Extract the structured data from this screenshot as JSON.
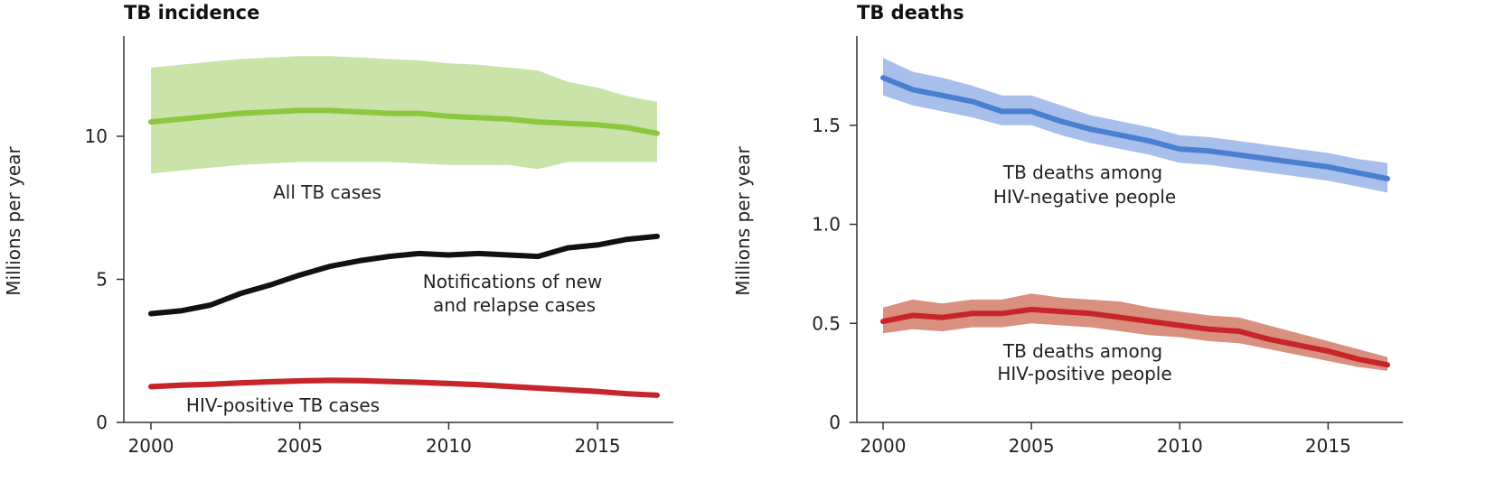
{
  "chart_data": [
    {
      "type": "line",
      "title": "TB incidence",
      "ylabel": "Millions per year",
      "xlabel": "",
      "xlim": [
        2000,
        2017
      ],
      "ylim": [
        0,
        13.5
      ],
      "xticks": [
        "2000",
        "2005",
        "2010",
        "2015"
      ],
      "yticks": [
        "0",
        "5",
        "10"
      ],
      "x": [
        2000,
        2001,
        2002,
        2003,
        2004,
        2005,
        2006,
        2007,
        2008,
        2009,
        2010,
        2011,
        2012,
        2013,
        2014,
        2015,
        2016,
        2017
      ],
      "series": [
        {
          "name": "All TB cases",
          "color": "#8dc63f",
          "band_color": "#c9e3a8",
          "values": [
            10.5,
            10.6,
            10.7,
            10.8,
            10.85,
            10.9,
            10.9,
            10.85,
            10.8,
            10.8,
            10.7,
            10.65,
            10.6,
            10.5,
            10.45,
            10.4,
            10.3,
            10.1
          ],
          "lower": [
            8.7,
            8.8,
            8.9,
            9.0,
            9.05,
            9.1,
            9.1,
            9.1,
            9.1,
            9.05,
            9.0,
            9.0,
            9.0,
            8.85,
            9.1,
            9.1,
            9.1,
            9.1
          ],
          "upper": [
            12.4,
            12.5,
            12.6,
            12.7,
            12.75,
            12.8,
            12.8,
            12.75,
            12.7,
            12.65,
            12.55,
            12.5,
            12.4,
            12.3,
            11.9,
            11.7,
            11.4,
            11.2
          ]
        },
        {
          "name": "Notifications of new and relapse cases",
          "color": "#111111",
          "values": [
            3.8,
            3.9,
            4.1,
            4.5,
            4.8,
            5.15,
            5.45,
            5.65,
            5.8,
            5.9,
            5.85,
            5.9,
            5.85,
            5.8,
            6.1,
            6.2,
            6.4,
            6.5
          ]
        },
        {
          "name": "HIV-positive TB cases",
          "color": "#c8242b",
          "band_color": "#e8a096",
          "values": [
            1.25,
            1.3,
            1.33,
            1.38,
            1.42,
            1.45,
            1.47,
            1.46,
            1.43,
            1.4,
            1.36,
            1.32,
            1.26,
            1.2,
            1.14,
            1.08,
            1.0,
            0.95
          ],
          "lower": [
            1.15,
            1.2,
            1.23,
            1.28,
            1.32,
            1.35,
            1.37,
            1.36,
            1.33,
            1.3,
            1.26,
            1.22,
            1.16,
            1.1,
            1.04,
            0.98,
            0.91,
            0.86
          ],
          "upper": [
            1.35,
            1.4,
            1.43,
            1.48,
            1.52,
            1.55,
            1.57,
            1.56,
            1.53,
            1.5,
            1.46,
            1.42,
            1.36,
            1.3,
            1.24,
            1.18,
            1.09,
            1.04
          ]
        }
      ],
      "annotations": [
        "All TB cases",
        "Notifications of new",
        "and relapse cases",
        "HIV-positive TB cases"
      ]
    },
    {
      "type": "line",
      "title": "TB deaths",
      "ylabel": "Millions per year",
      "xlabel": "",
      "xlim": [
        2000,
        2017
      ],
      "ylim": [
        0,
        1.95
      ],
      "xticks": [
        "2000",
        "2005",
        "2010",
        "2015"
      ],
      "yticks": [
        "0",
        "0.5",
        "1.0",
        "1.5"
      ],
      "x": [
        2000,
        2001,
        2002,
        2003,
        2004,
        2005,
        2006,
        2007,
        2008,
        2009,
        2010,
        2011,
        2012,
        2013,
        2014,
        2015,
        2016,
        2017
      ],
      "series": [
        {
          "name": "TB deaths among HIV-negative people",
          "color": "#4a7fd0",
          "band_color": "#a9bfeb",
          "values": [
            1.74,
            1.68,
            1.65,
            1.62,
            1.57,
            1.57,
            1.52,
            1.48,
            1.45,
            1.42,
            1.38,
            1.37,
            1.35,
            1.33,
            1.31,
            1.29,
            1.26,
            1.23
          ],
          "lower": [
            1.65,
            1.6,
            1.57,
            1.54,
            1.5,
            1.5,
            1.45,
            1.41,
            1.38,
            1.35,
            1.31,
            1.3,
            1.28,
            1.26,
            1.24,
            1.22,
            1.19,
            1.16
          ],
          "upper": [
            1.84,
            1.77,
            1.74,
            1.7,
            1.65,
            1.65,
            1.6,
            1.55,
            1.52,
            1.49,
            1.45,
            1.44,
            1.42,
            1.4,
            1.38,
            1.36,
            1.33,
            1.31
          ]
        },
        {
          "name": "TB deaths among HIV-positive people",
          "color": "#c8242b",
          "band_color": "#d9907e",
          "values": [
            0.51,
            0.54,
            0.53,
            0.55,
            0.55,
            0.57,
            0.56,
            0.55,
            0.53,
            0.51,
            0.49,
            0.47,
            0.46,
            0.42,
            0.39,
            0.36,
            0.32,
            0.29
          ],
          "lower": [
            0.45,
            0.47,
            0.46,
            0.48,
            0.48,
            0.5,
            0.49,
            0.48,
            0.46,
            0.44,
            0.43,
            0.41,
            0.4,
            0.37,
            0.34,
            0.31,
            0.28,
            0.26
          ],
          "upper": [
            0.58,
            0.62,
            0.6,
            0.62,
            0.62,
            0.65,
            0.63,
            0.62,
            0.61,
            0.58,
            0.56,
            0.54,
            0.53,
            0.49,
            0.45,
            0.41,
            0.37,
            0.33
          ]
        }
      ],
      "annotations": [
        "TB deaths among",
        "HIV-negative people",
        "TB deaths among",
        "HIV-positive people"
      ]
    }
  ]
}
